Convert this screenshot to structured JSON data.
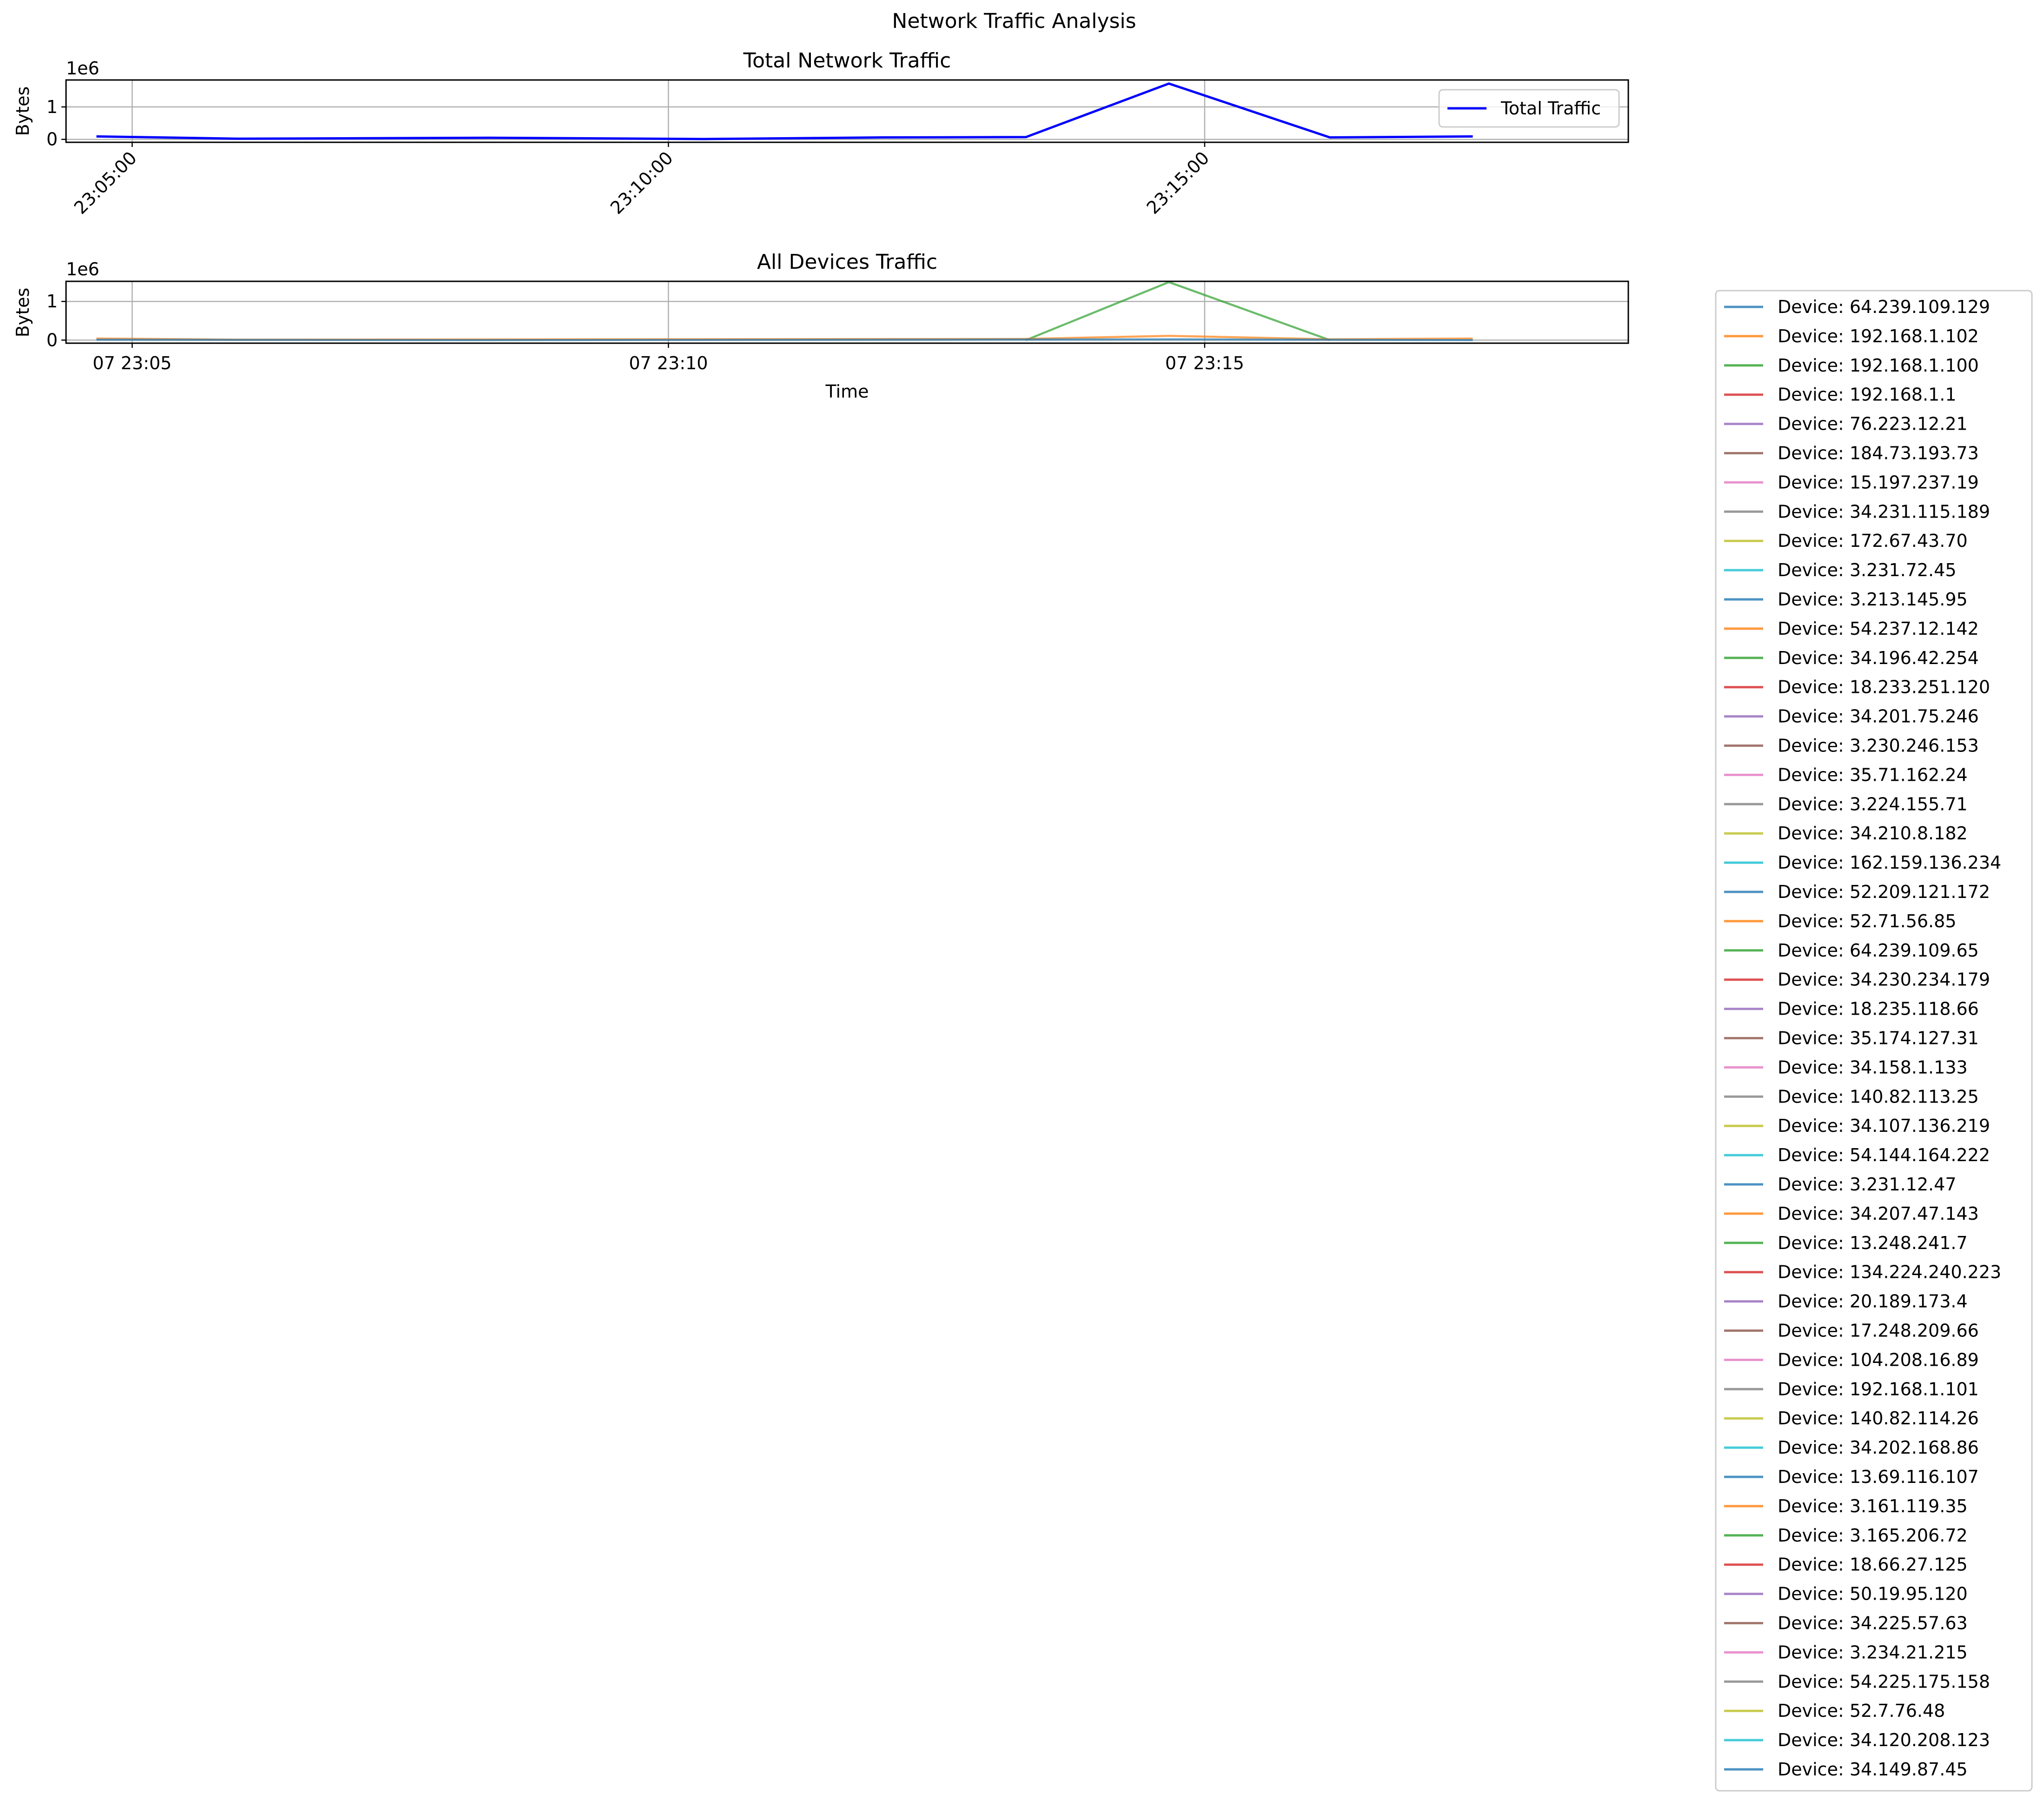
{
  "figure": {
    "suptitle": "Network Traffic Analysis"
  },
  "chart_data": [
    {
      "type": "line",
      "title": "Total Network Traffic",
      "xlabel": "",
      "ylabel": "Bytes",
      "y_offset_label": "1e6",
      "x_axis": {
        "type": "time",
        "range": [
          "23:04:23",
          "23:18:57"
        ],
        "tick_format": "HH:MM:SS",
        "tick_rotation": 45
      },
      "x_ticks": [
        "23:05:00",
        "23:10:00",
        "23:15:00"
      ],
      "y_ticks": [
        "0",
        "1"
      ],
      "ylim": [
        -0.09,
        1.83
      ],
      "grid": true,
      "legend": {
        "placement": "upper right",
        "entries": [
          "Total Traffic"
        ]
      },
      "series": [
        {
          "name": "Total Traffic",
          "color": "#0000ff",
          "points": [
            {
              "t": "23:04:40",
              "y": 0.09
            },
            {
              "t": "23:06:00",
              "y": 0.02
            },
            {
              "t": "23:08:20",
              "y": 0.05
            },
            {
              "t": "23:10:20",
              "y": 0.01
            },
            {
              "t": "23:12:00",
              "y": 0.06
            },
            {
              "t": "23:13:20",
              "y": 0.07
            },
            {
              "t": "23:14:40",
              "y": 1.72
            },
            {
              "t": "23:16:10",
              "y": 0.06
            },
            {
              "t": "23:17:30",
              "y": 0.09
            }
          ]
        }
      ]
    },
    {
      "type": "line",
      "title": "All Devices Traffic",
      "xlabel": "Time",
      "ylabel": "Bytes",
      "y_offset_label": "1e6",
      "x_axis": {
        "type": "time",
        "range": [
          "23:04:23",
          "23:18:57"
        ]
      },
      "x_ticks": [
        "07 23:05",
        "07 23:10",
        "07 23:15"
      ],
      "y_ticks": [
        "0",
        "1"
      ],
      "ylim": [
        -0.08,
        1.52
      ],
      "grid": true,
      "legend": {
        "placement": "outside right",
        "entries": [
          "Device: 64.239.109.129",
          "Device: 192.168.1.102",
          "Device: 192.168.1.100",
          "Device: 192.168.1.1",
          "Device: 76.223.12.21",
          "Device: 184.73.193.73",
          "Device: 15.197.237.19",
          "Device: 34.231.115.189",
          "Device: 172.67.43.70",
          "Device: 3.231.72.45",
          "Device: 3.213.145.95",
          "Device: 54.237.12.142",
          "Device: 34.196.42.254",
          "Device: 18.233.251.120",
          "Device: 34.201.75.246",
          "Device: 3.230.246.153",
          "Device: 35.71.162.24",
          "Device: 3.224.155.71",
          "Device: 34.210.8.182",
          "Device: 162.159.136.234",
          "Device: 52.209.121.172",
          "Device: 52.71.56.85",
          "Device: 64.239.109.65",
          "Device: 34.230.234.179",
          "Device: 18.235.118.66",
          "Device: 35.174.127.31",
          "Device: 34.158.1.133",
          "Device: 140.82.113.25",
          "Device: 34.107.136.219",
          "Device: 54.144.164.222",
          "Device: 3.231.12.47",
          "Device: 34.207.47.143",
          "Device: 13.248.241.7",
          "Device: 134.224.240.223",
          "Device: 20.189.173.4",
          "Device: 17.248.209.66",
          "Device: 104.208.16.89",
          "Device: 192.168.1.101",
          "Device: 140.82.114.26",
          "Device: 34.202.168.86",
          "Device: 13.69.116.107",
          "Device: 3.161.119.35",
          "Device: 3.165.206.72",
          "Device: 18.66.27.125",
          "Device: 50.19.95.120",
          "Device: 34.225.57.63",
          "Device: 3.234.21.215",
          "Device: 54.225.175.158",
          "Device: 52.7.76.48",
          "Device: 34.120.208.123",
          "Device: 34.149.87.45"
        ]
      },
      "palette": [
        "#1f77b4",
        "#ff7f0e",
        "#2ca02c",
        "#d62728",
        "#9467bd",
        "#8c564b",
        "#e377c2",
        "#7f7f7f",
        "#bcbd22",
        "#17becf"
      ],
      "line_alpha": 0.7,
      "series": [
        {
          "name": "Device: 192.168.1.100",
          "color": "#2ca02c",
          "points": [
            {
              "t": "23:13:20",
              "y": 0.0
            },
            {
              "t": "23:14:40",
              "y": 1.5
            },
            {
              "t": "23:16:10",
              "y": 0.0
            }
          ]
        },
        {
          "name": "Device: 192.168.1.102",
          "color": "#ff7f0e",
          "points": [
            {
              "t": "23:04:40",
              "y": 0.04
            },
            {
              "t": "23:06:00",
              "y": 0.01
            },
            {
              "t": "23:13:20",
              "y": 0.03
            },
            {
              "t": "23:14:40",
              "y": 0.11
            },
            {
              "t": "23:16:10",
              "y": 0.02
            },
            {
              "t": "23:17:30",
              "y": 0.04
            }
          ]
        },
        {
          "name": "Device: 64.239.109.129",
          "color": "#1f77b4",
          "points": [
            {
              "t": "23:04:40",
              "y": 0.01
            },
            {
              "t": "23:08:20",
              "y": 0.0
            },
            {
              "t": "23:12:00",
              "y": 0.01
            },
            {
              "t": "23:14:40",
              "y": 0.02
            },
            {
              "t": "23:17:30",
              "y": 0.0
            }
          ]
        }
      ]
    }
  ]
}
